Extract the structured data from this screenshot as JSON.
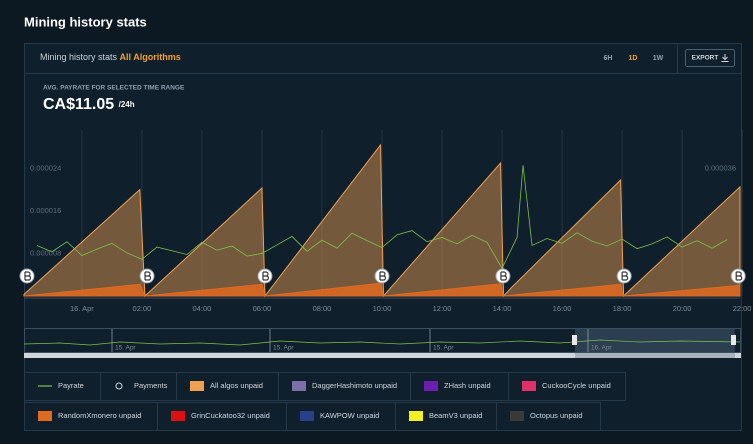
{
  "page": {
    "title": "Mining history stats"
  },
  "panel": {
    "title": "Mining history stats",
    "algorithm": "All Algorithms",
    "ranges": [
      "6H",
      "1D",
      "1W"
    ],
    "export": "EXPORT",
    "avg_label": "AVG. PAYRATE FOR SELECTED TIME RANGE",
    "avg_value": "CA$11.05",
    "avg_unit": "/24h"
  },
  "navigator": {
    "labels": [
      "15. Apr",
      "15. Apr",
      "15. Apr",
      "16. Apr"
    ]
  },
  "chart_data": {
    "type": "line",
    "xlim": [
      -1.93,
      21.93
    ],
    "xticks": [
      {
        "value": 0,
        "label": "16. Apr"
      },
      {
        "value": 2,
        "label": "02:00"
      },
      {
        "value": 4,
        "label": "04:00"
      },
      {
        "value": 6,
        "label": "06:00"
      },
      {
        "value": 8,
        "label": "08:00"
      },
      {
        "value": 10,
        "label": "10:00"
      },
      {
        "value": 12,
        "label": "12:00"
      },
      {
        "value": 14,
        "label": "14:00"
      },
      {
        "value": 16,
        "label": "16:00"
      },
      {
        "value": 18,
        "label": "18:00"
      },
      {
        "value": 20,
        "label": "20:00"
      },
      {
        "value": 22,
        "label": "22:00"
      }
    ],
    "ylim": [
      0,
      3.12e-05
    ],
    "yticks": [
      8e-06,
      1.6e-05,
      2.4e-05
    ],
    "y2lim": [
      0,
      4.68e-05
    ],
    "y2ticks": [
      3.6e-05
    ],
    "grid": true,
    "series": [
      {
        "name": "Payrate",
        "color": "#7cc24a",
        "x": [
          -1.5,
          -1,
          -0.5,
          0,
          0.5,
          1,
          1.5,
          2,
          2.5,
          3,
          3.5,
          4,
          4.5,
          5,
          5.5,
          6,
          6.5,
          7,
          7.5,
          8,
          8.5,
          9,
          9.5,
          10,
          10.5,
          11,
          11.5,
          12,
          12.5,
          13,
          13.5,
          14,
          14.5,
          14.7,
          15,
          15.5,
          16,
          16.5,
          17,
          17.5,
          18,
          18.5,
          19,
          19.5,
          20,
          20.5,
          21,
          21.5
        ],
        "values": [
          9.5e-06,
          8.3e-06,
          1.02e-05,
          7.6e-06,
          8.8e-06,
          9.9e-06,
          8.1e-06,
          6.9e-06,
          9.2e-06,
          8.5e-06,
          7.8e-06,
          1.01e-05,
          8.6e-06,
          9.4e-06,
          7.5e-06,
          8e-06,
          9.6e-06,
          1.12e-05,
          8.4e-06,
          1.05e-05,
          9e-06,
          1.18e-05,
          1.04e-05,
          9.1e-06,
          1.15e-05,
          1.23e-05,
          1.02e-05,
          1.1e-05,
          9.8e-06,
          1.14e-05,
          1.01e-05,
          5.2e-06,
          1.1e-05,
          2.46e-05,
          9.5e-06,
          1.08e-05,
          9.9e-06,
          1.19e-05,
          1.03e-05,
          9.4e-06,
          1.07e-05,
          8.9e-06,
          9.8e-06,
          1.11e-05,
          9.2e-06,
          1.04e-05,
          9e-06,
          1.06e-05
        ]
      },
      {
        "name": "Payments",
        "color": "#ffffff",
        "x": [
          -1.83,
          2.17,
          6.1,
          10.0,
          14.03,
          18.07,
          21.87
        ]
      },
      {
        "name": "All algos unpaid",
        "color": "#f0a050",
        "x": [
          -1.93,
          1.93,
          2.1,
          6.0,
          6.1,
          9.95,
          10.05,
          13.95,
          14.05,
          14.3,
          17.95,
          18.05,
          21.93
        ],
        "values": [
          3e-07,
          2e-05,
          0,
          2.03e-05,
          0,
          2.84e-05,
          0,
          2.5e-05,
          0,
          1.5e-06,
          2.18e-05,
          0,
          2.05e-05
        ]
      },
      {
        "name": "DaggerHashimoto unpaid",
        "color": "#7a6fa8"
      },
      {
        "name": "ZHash unpaid",
        "color": "#6a1fb0"
      },
      {
        "name": "CuckooCycle unpaid",
        "color": "#e0306a"
      },
      {
        "name": "RandomXmonero unpaid",
        "color": "#e06a20",
        "x": [
          -1.93,
          1.93,
          2.1,
          6.0,
          6.1,
          9.95,
          10.05,
          13.95,
          14.05,
          17.95,
          18.05,
          21.93
        ],
        "values": [
          0,
          2.2e-06,
          0,
          2.2e-06,
          0,
          2.4e-06,
          0,
          2.3e-06,
          0,
          2.2e-06,
          0,
          2e-06
        ]
      },
      {
        "name": "GrinCuckatoo32 unpaid",
        "color": "#e01010"
      },
      {
        "name": "KAWPOW unpaid",
        "color": "#2a3f8a"
      },
      {
        "name": "BeamV3 unpaid",
        "color": "#f0f020"
      },
      {
        "name": "Octopus unpaid",
        "color": "#3a3a3a"
      }
    ]
  }
}
